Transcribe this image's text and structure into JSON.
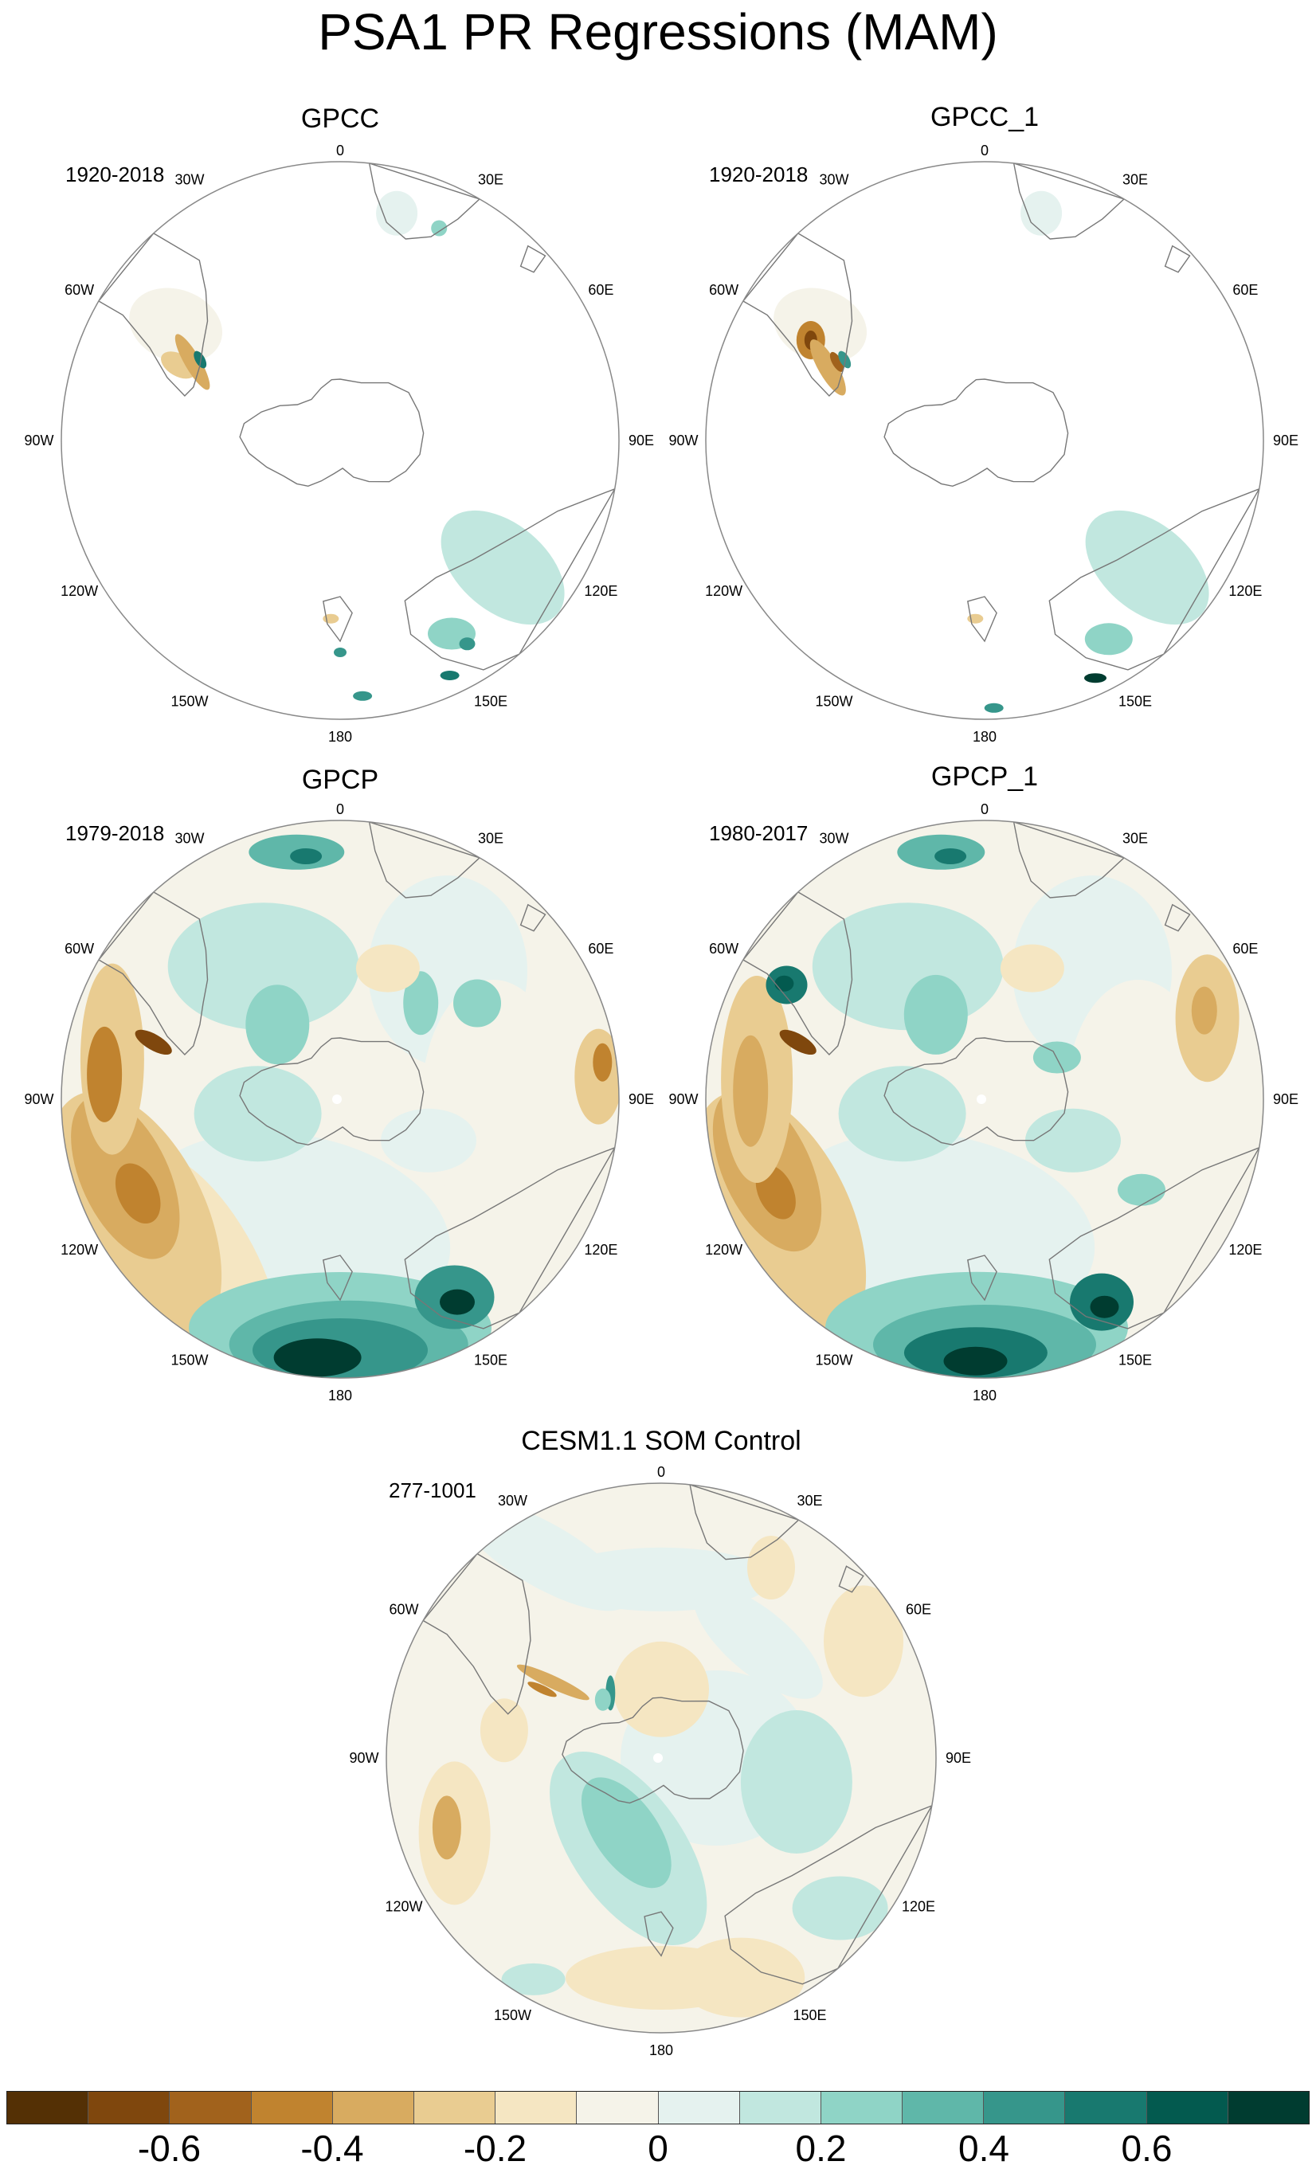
{
  "figure": {
    "title": "PSA1 PR Regressions (MAM)"
  },
  "lon_labels": [
    "0",
    "30E",
    "60E",
    "90E",
    "120E",
    "150E",
    "180",
    "150W",
    "120W",
    "90W",
    "60W",
    "30W"
  ],
  "panels": [
    {
      "id": "gpcc",
      "title": "GPCC",
      "period": "1920-2018",
      "coverage": "land"
    },
    {
      "id": "gpcc-1",
      "title": "GPCC_1",
      "period": "1920-2018",
      "coverage": "land"
    },
    {
      "id": "gpcp",
      "title": "GPCP",
      "period": "1979-2018",
      "coverage": "global"
    },
    {
      "id": "gpcp-1",
      "title": "GPCP_1",
      "period": "1980-2017",
      "coverage": "global"
    },
    {
      "id": "cesm",
      "title": "CESM1.1 SOM Control",
      "period": "277-1001",
      "coverage": "global"
    }
  ],
  "colorbar": {
    "colors": [
      "#543005",
      "#7f470d",
      "#a1621c",
      "#c0832f",
      "#d8ab60",
      "#e9cc91",
      "#f5e6c2",
      "#f5f3e9",
      "#e5f2ef",
      "#c1e7df",
      "#8fd4c6",
      "#5fb7a9",
      "#36968b",
      "#18796f",
      "#035a4f",
      "#003c30"
    ],
    "tick_labels": [
      "-0.6",
      "-0.4",
      "-0.2",
      "0",
      "0.2",
      "0.4",
      "0.6"
    ],
    "tick_positions": [
      2,
      4,
      6,
      8,
      10,
      12,
      14
    ]
  }
}
